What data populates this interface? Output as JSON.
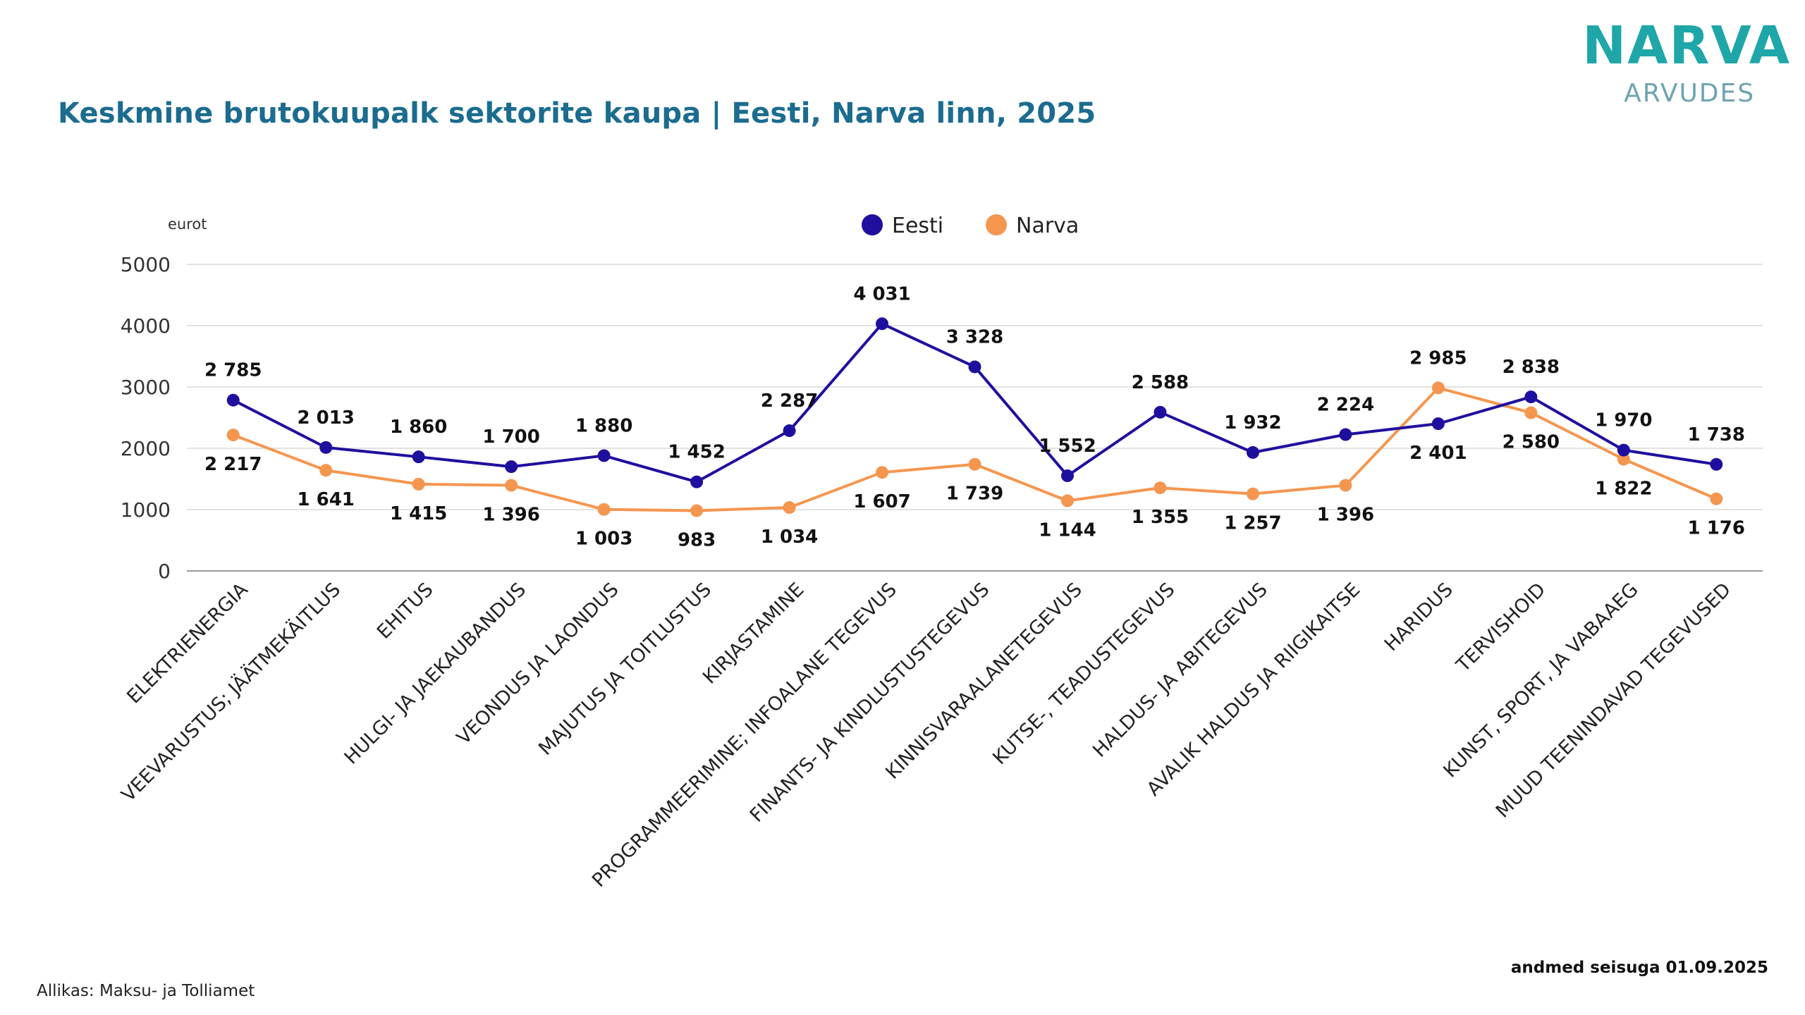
{
  "header": {
    "title": "Keskmine brutokuupalk sektorite kaupa | Eesti, Narva linn, 2025",
    "logo_main": "NARVA",
    "logo_sub": "ARVUDES"
  },
  "footer": {
    "source": "Allikas: Maksu- ja Tolliamet",
    "as_of": "andmed seisuga 01.09.2025"
  },
  "chart_data": {
    "type": "line",
    "title": "Keskmine brutokuupalk sektorite kaupa | Eesti, Narva linn, 2025",
    "xlabel": "",
    "ylabel": "eurot",
    "ylim": [
      0,
      5000
    ],
    "yticks": [
      0,
      1000,
      2000,
      3000,
      4000,
      5000
    ],
    "grid": true,
    "legend_position": "top-center",
    "categories": [
      "ELEKTRIENERGIA",
      "VEEVARUSTUS; JÄÄTMEKÄITLUS",
      "EHITUS",
      "HULGI- JA JAEKAUBANDUS",
      "VEONDUS JA LAONDUS",
      "MAJUTUS JA TOITLUSTUS",
      "KIRJASTAMINE",
      "PROGRAMMEERIMINE; INFOALANE TEGEVUS",
      "FINANTS- JA KINDLUSTUSTEGEVUS",
      "KINNISVARAALANETEGEVUS",
      "KUTSE-, TEADUSTEGEVUS",
      "HALDUS- JA ABITEGEVUS",
      "AVALIK HALDUS JA RIIGIKAITSE",
      "HARIDUS",
      "TERVISHOID",
      "KUNST, SPORT, JA VABAAEG",
      "MUUD TEENINDAVAD TEGEVUSED"
    ],
    "series": [
      {
        "name": "Eesti",
        "color": "#1f0f9e",
        "values": [
          2785,
          2013,
          1860,
          1700,
          1880,
          1452,
          2287,
          4031,
          3328,
          1552,
          2588,
          1932,
          2224,
          2401,
          2838,
          1970,
          1738
        ],
        "labels": [
          "2 785",
          "2 013",
          "1 860",
          "1 700",
          "1 880",
          "1 452",
          "2 287",
          "4 031",
          "3 328",
          "1 552",
          "2 588",
          "1 932",
          "2 224",
          "2 401",
          "2 838",
          "1 970",
          "1 738"
        ]
      },
      {
        "name": "Narva",
        "color": "#f5964f",
        "values": [
          2217,
          1641,
          1415,
          1396,
          1003,
          983,
          1034,
          1607,
          1739,
          1144,
          1355,
          1257,
          1396,
          2985,
          2580,
          1822,
          1176
        ],
        "labels": [
          "2 217",
          "1 641",
          "1 415",
          "1 396",
          "1 003",
          "983",
          "1 034",
          "1 607",
          "1 739",
          "1 144",
          "1 355",
          "1 257",
          "1 396",
          "2 985",
          "2 580",
          "1 822",
          "1 176"
        ]
      }
    ]
  }
}
